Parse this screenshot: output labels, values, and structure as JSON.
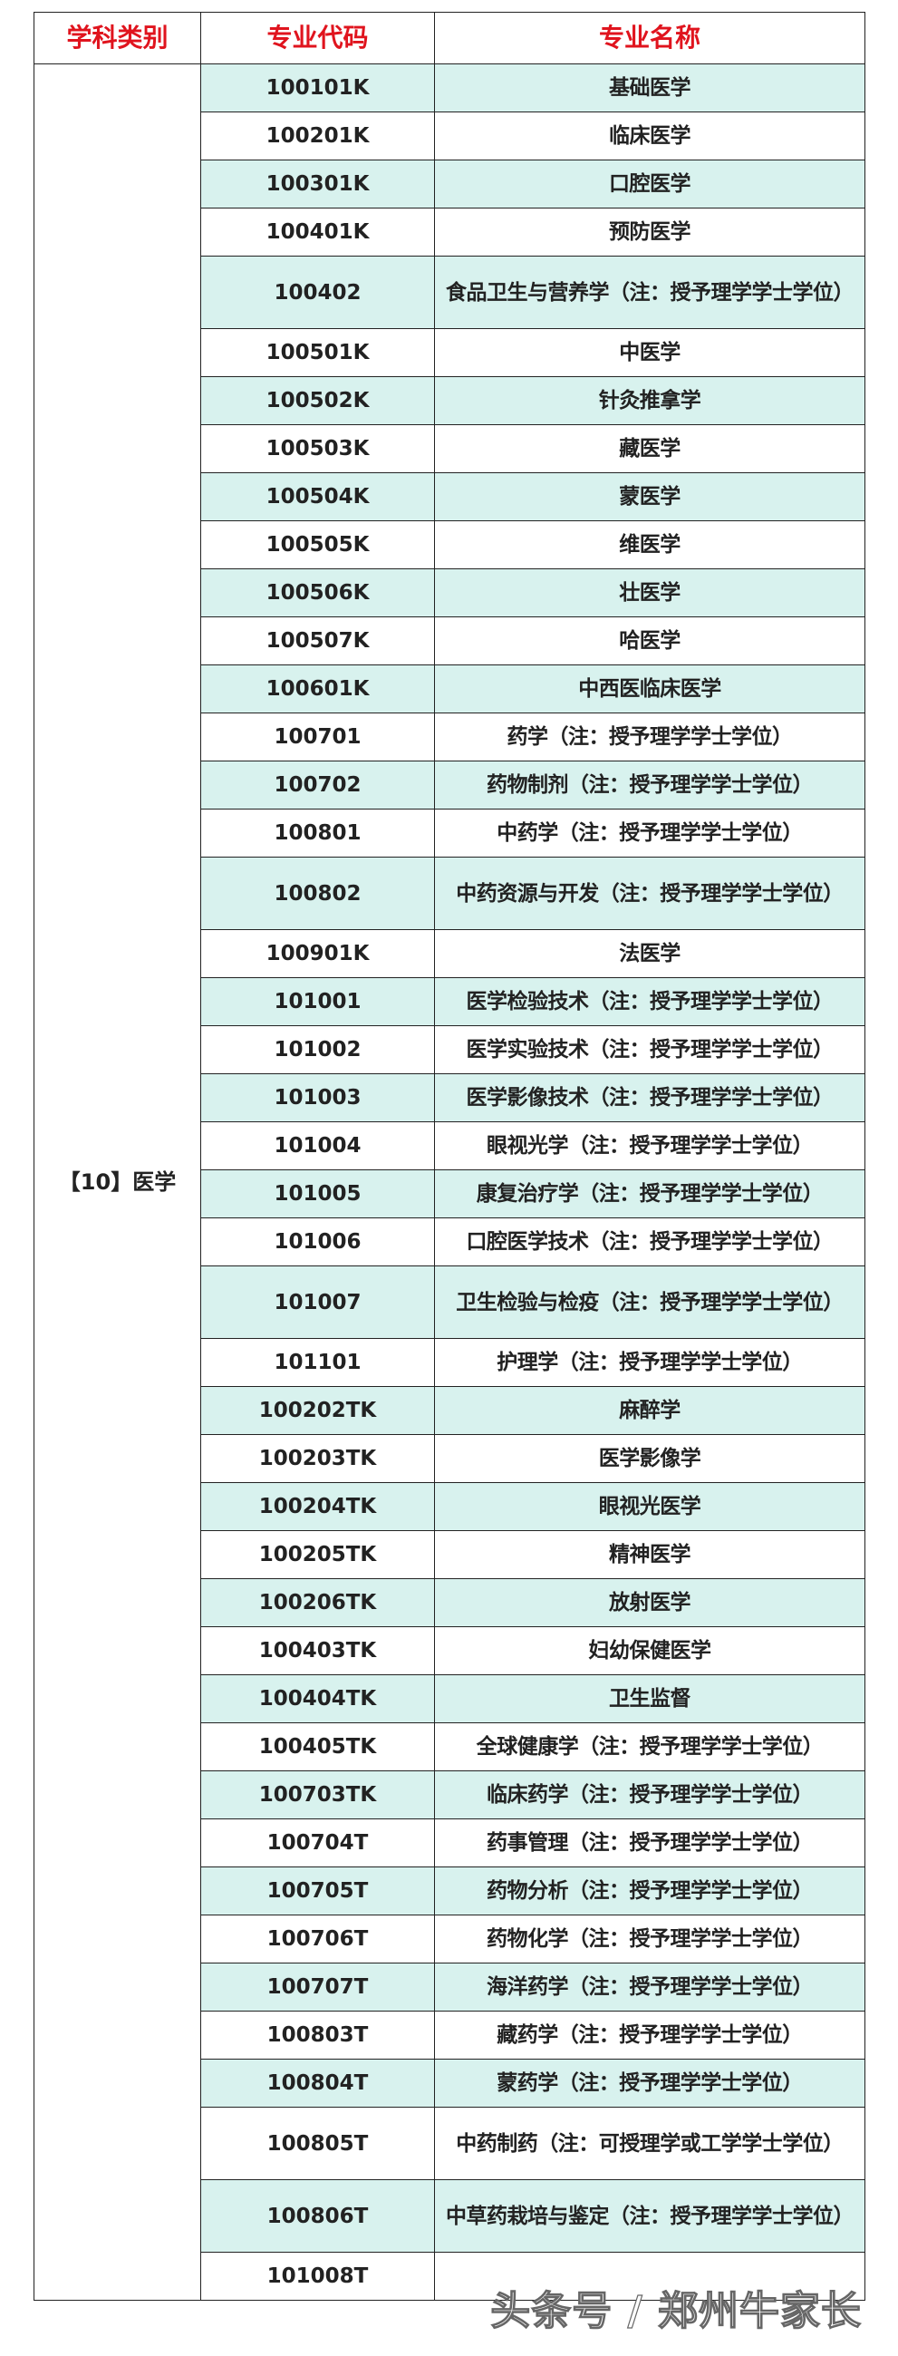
{
  "header": {
    "category": "学科类别",
    "code": "专业代码",
    "name": "专业名称"
  },
  "category": "【10】医学",
  "rows": [
    {
      "code": "100101K",
      "name": "基础医学"
    },
    {
      "code": "100201K",
      "name": "临床医学"
    },
    {
      "code": "100301K",
      "name": "口腔医学"
    },
    {
      "code": "100401K",
      "name": "预防医学"
    },
    {
      "code": "100402",
      "name": "食品卫生与营养学（注：授予理学学士学位）"
    },
    {
      "code": "100501K",
      "name": "中医学"
    },
    {
      "code": "100502K",
      "name": "针灸推拿学"
    },
    {
      "code": "100503K",
      "name": "藏医学"
    },
    {
      "code": "100504K",
      "name": "蒙医学"
    },
    {
      "code": "100505K",
      "name": "维医学"
    },
    {
      "code": "100506K",
      "name": "壮医学"
    },
    {
      "code": "100507K",
      "name": "哈医学"
    },
    {
      "code": "100601K",
      "name": "中西医临床医学"
    },
    {
      "code": "100701",
      "name": "药学（注：授予理学学士学位）"
    },
    {
      "code": "100702",
      "name": "药物制剂（注：授予理学学士学位）"
    },
    {
      "code": "100801",
      "name": "中药学（注：授予理学学士学位）"
    },
    {
      "code": "100802",
      "name": "中药资源与开发（注：授予理学学士学位）"
    },
    {
      "code": "100901K",
      "name": "法医学"
    },
    {
      "code": "101001",
      "name": "医学检验技术（注：授予理学学士学位）"
    },
    {
      "code": "101002",
      "name": "医学实验技术（注：授予理学学士学位）"
    },
    {
      "code": "101003",
      "name": "医学影像技术（注：授予理学学士学位）"
    },
    {
      "code": "101004",
      "name": "眼视光学（注：授予理学学士学位）"
    },
    {
      "code": "101005",
      "name": "康复治疗学（注：授予理学学士学位）"
    },
    {
      "code": "101006",
      "name": "口腔医学技术（注：授予理学学士学位）"
    },
    {
      "code": "101007",
      "name": "卫生检验与检疫（注：授予理学学士学位）"
    },
    {
      "code": "101101",
      "name": "护理学（注：授予理学学士学位）"
    },
    {
      "code": "100202TK",
      "name": "麻醉学"
    },
    {
      "code": "100203TK",
      "name": "医学影像学"
    },
    {
      "code": "100204TK",
      "name": "眼视光医学"
    },
    {
      "code": "100205TK",
      "name": "精神医学"
    },
    {
      "code": "100206TK",
      "name": "放射医学"
    },
    {
      "code": "100403TK",
      "name": "妇幼保健医学"
    },
    {
      "code": "100404TK",
      "name": "卫生监督"
    },
    {
      "code": "100405TK",
      "name": "全球健康学（注：授予理学学士学位）"
    },
    {
      "code": "100703TK",
      "name": "临床药学（注：授予理学学士学位）"
    },
    {
      "code": "100704T",
      "name": "药事管理（注：授予理学学士学位）"
    },
    {
      "code": "100705T",
      "name": "药物分析（注：授予理学学士学位）"
    },
    {
      "code": "100706T",
      "name": "药物化学（注：授予理学学士学位）"
    },
    {
      "code": "100707T",
      "name": "海洋药学（注：授予理学学士学位）"
    },
    {
      "code": "100803T",
      "name": "藏药学（注：授予理学学士学位）"
    },
    {
      "code": "100804T",
      "name": "蒙药学（注：授予理学学士学位）"
    },
    {
      "code": "100805T",
      "name": "中药制药（注：可授理学或工学学士学位）"
    },
    {
      "code": "100806T",
      "name": "中草药栽培与鉴定（注：授予理学学士学位）"
    },
    {
      "code": "101008T",
      "name": ""
    }
  ],
  "double_rows": [
    "100402",
    "100802",
    "101007",
    "100805T",
    "100806T"
  ],
  "colors": {
    "header_text": "#e0141e",
    "stripe": "#d8f2ee",
    "border": "#222222"
  },
  "watermark": "头条号 / 郑州牛家长"
}
